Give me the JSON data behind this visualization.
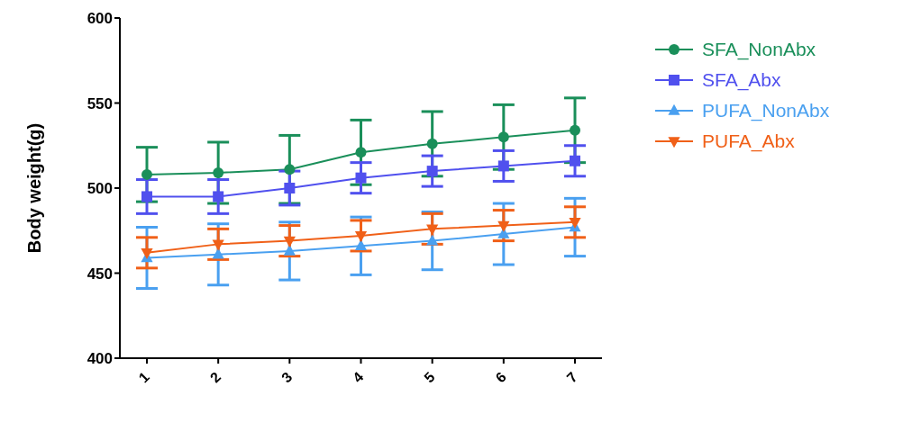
{
  "chart_data": {
    "type": "line",
    "ylabel": "Body weight(g)",
    "categories": [
      "1",
      "2",
      "3",
      "4",
      "5",
      "6",
      "7"
    ],
    "ylim": [
      400,
      600
    ],
    "yticks": [
      400,
      450,
      500,
      550,
      600
    ],
    "grid": false,
    "legend": "top right",
    "series": [
      {
        "name": "SFA_NonAbx",
        "color": "#1a8f5a",
        "marker": "circle",
        "values": [
          508,
          509,
          511,
          521,
          526,
          530,
          534
        ],
        "errors": [
          16,
          18,
          20,
          19,
          19,
          19,
          19
        ]
      },
      {
        "name": "SFA_Abx",
        "color": "#5050ee",
        "marker": "square",
        "values": [
          495,
          495,
          500,
          506,
          510,
          513,
          516
        ],
        "errors": [
          10,
          10,
          10,
          9,
          9,
          9,
          9
        ]
      },
      {
        "name": "PUFA_NonAbx",
        "color": "#4aa0f0",
        "marker": "triangle",
        "values": [
          459,
          461,
          463,
          466,
          469,
          473,
          477
        ],
        "errors": [
          18,
          18,
          17,
          17,
          17,
          18,
          17
        ]
      },
      {
        "name": "PUFA_Abx",
        "color": "#f06018",
        "marker": "triangle-down",
        "values": [
          462,
          467,
          469,
          472,
          476,
          478,
          480
        ],
        "errors": [
          9,
          9,
          9,
          9,
          9,
          9,
          9
        ]
      }
    ]
  }
}
